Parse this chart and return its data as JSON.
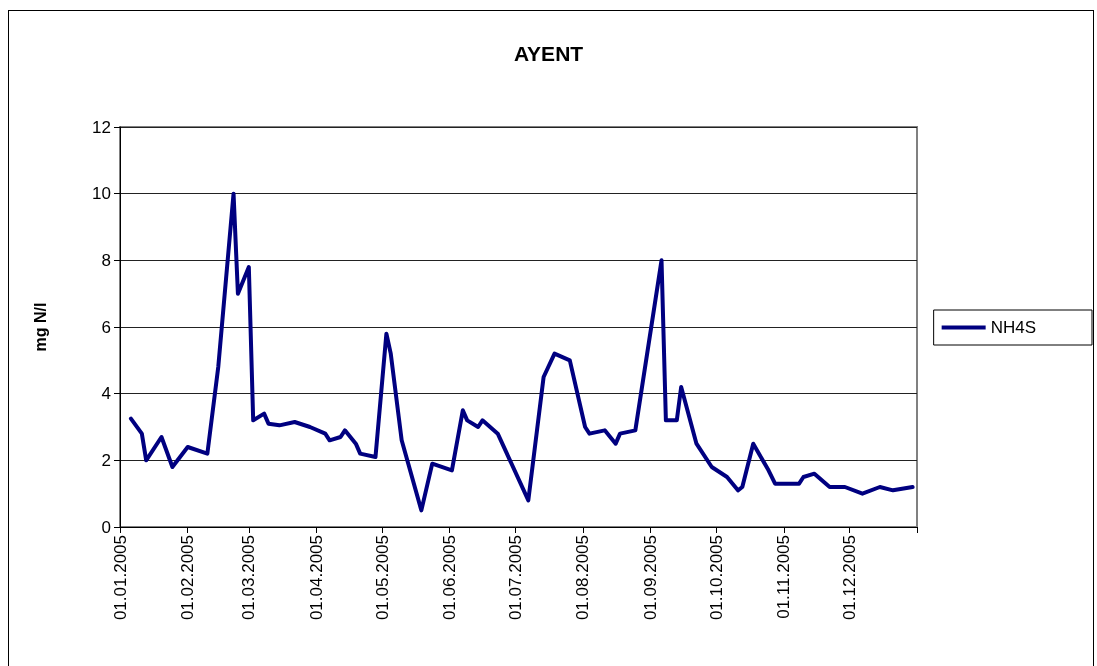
{
  "chart_data": {
    "type": "line",
    "title": "AYENT",
    "ylabel": "mg N/l",
    "x": [
      "2005-01-06",
      "2005-01-11",
      "2005-01-13",
      "2005-01-20",
      "2005-01-25",
      "2005-02-01",
      "2005-02-10",
      "2005-02-15",
      "2005-02-22",
      "2005-02-24",
      "2005-03-01",
      "2005-03-03",
      "2005-03-08",
      "2005-03-10",
      "2005-03-15",
      "2005-03-22",
      "2005-03-29",
      "2005-04-05",
      "2005-04-07",
      "2005-04-12",
      "2005-04-14",
      "2005-04-19",
      "2005-04-21",
      "2005-04-28",
      "2005-05-03",
      "2005-05-05",
      "2005-05-10",
      "2005-05-19",
      "2005-05-24",
      "2005-06-02",
      "2005-06-07",
      "2005-06-09",
      "2005-06-14",
      "2005-06-16",
      "2005-06-23",
      "2005-07-07",
      "2005-07-14",
      "2005-07-19",
      "2005-07-26",
      "2005-08-02",
      "2005-08-04",
      "2005-08-11",
      "2005-08-16",
      "2005-08-18",
      "2005-08-25",
      "2005-09-06",
      "2005-09-08",
      "2005-09-13",
      "2005-09-15",
      "2005-09-22",
      "2005-09-29",
      "2005-10-06",
      "2005-10-11",
      "2005-10-13",
      "2005-10-18",
      "2005-10-25",
      "2005-10-28",
      "2005-11-08",
      "2005-11-10",
      "2005-11-15",
      "2005-11-22",
      "2005-11-29",
      "2005-12-07",
      "2005-12-15",
      "2005-12-21",
      "2005-12-30"
    ],
    "series": [
      {
        "name": "NH4S",
        "color": "#000080",
        "values": [
          3.25,
          2.8,
          2.0,
          2.7,
          1.8,
          2.4,
          2.2,
          4.8,
          10.0,
          7.0,
          7.8,
          3.2,
          3.4,
          3.1,
          3.05,
          3.15,
          3.0,
          2.8,
          2.6,
          2.7,
          2.9,
          2.5,
          2.2,
          2.1,
          5.8,
          5.2,
          2.6,
          0.5,
          1.9,
          1.7,
          3.5,
          3.2,
          3.0,
          3.2,
          2.8,
          0.8,
          4.5,
          5.2,
          5.0,
          3.0,
          2.8,
          2.9,
          2.5,
          2.8,
          2.9,
          8.0,
          3.2,
          3.2,
          4.2,
          2.5,
          1.8,
          1.5,
          1.1,
          1.2,
          2.5,
          1.7,
          1.3,
          1.3,
          1.5,
          1.6,
          1.2,
          1.2,
          1.0,
          1.2,
          1.1,
          1.2
        ]
      }
    ],
    "xlim": [
      "2005-01-01",
      "2006-01-01"
    ],
    "xticks": [
      {
        "value": "2005-01-01",
        "label": "01.01.2005"
      },
      {
        "value": "2005-02-01",
        "label": "01.02.2005"
      },
      {
        "value": "2005-03-01",
        "label": "01.03.2005"
      },
      {
        "value": "2005-04-01",
        "label": "01.04.2005"
      },
      {
        "value": "2005-05-01",
        "label": "01.05.2005"
      },
      {
        "value": "2005-06-01",
        "label": "01.06.2005"
      },
      {
        "value": "2005-07-01",
        "label": "01.07.2005"
      },
      {
        "value": "2005-08-01",
        "label": "01.08.2005"
      },
      {
        "value": "2005-09-01",
        "label": "01.09.2005"
      },
      {
        "value": "2005-10-01",
        "label": "01.10.2005"
      },
      {
        "value": "2005-11-01",
        "label": "01.11.2005"
      },
      {
        "value": "2005-12-01",
        "label": "01.12.2005"
      },
      {
        "value": "2006-01-01",
        "label": null
      }
    ],
    "ylim": [
      0,
      12
    ],
    "yticks": [
      0,
      2,
      4,
      6,
      8,
      10,
      12
    ],
    "grid": "y",
    "legend": "right"
  }
}
